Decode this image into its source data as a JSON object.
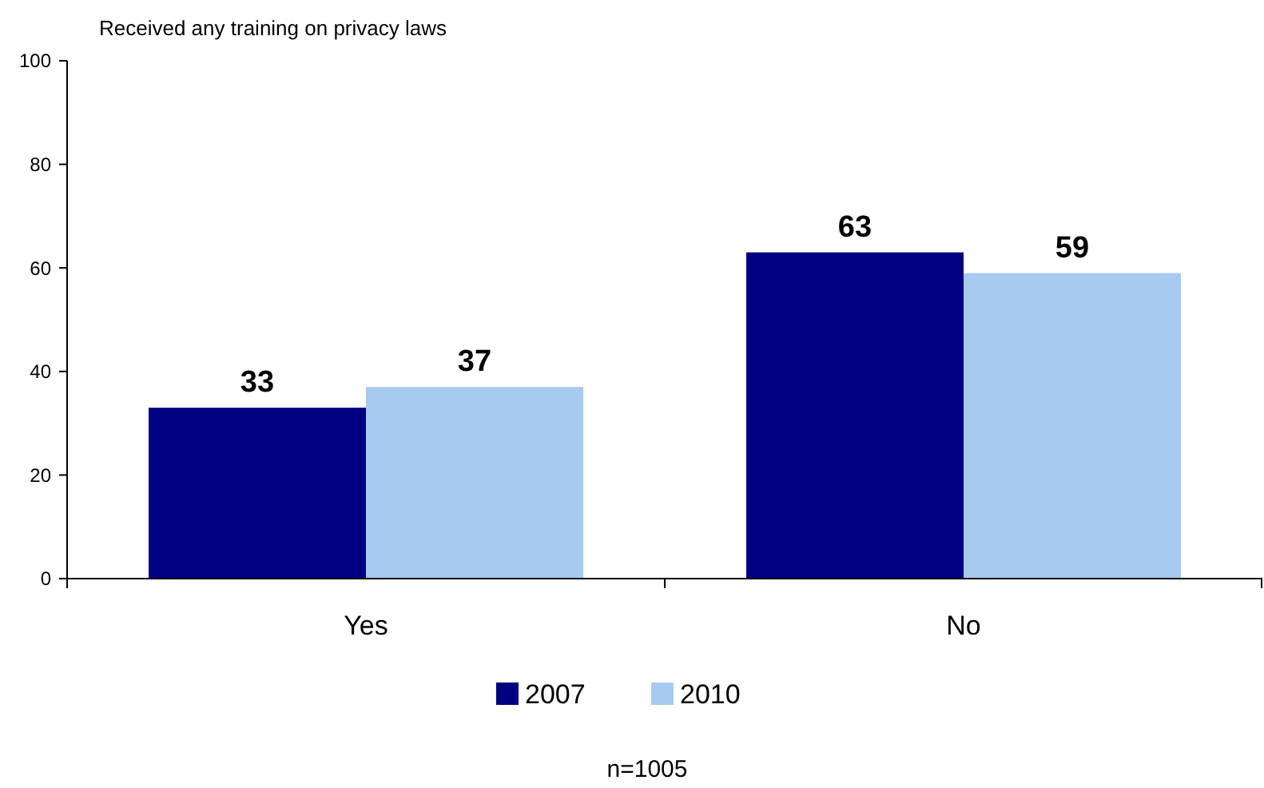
{
  "chart_data": {
    "type": "bar",
    "title": "Received any training on privacy laws",
    "categories": [
      "Yes",
      "No"
    ],
    "series": [
      {
        "name": "2007",
        "color": "#000080",
        "values": [
          33,
          63
        ]
      },
      {
        "name": "2010",
        "color": "#a6caf0",
        "values": [
          37,
          59
        ]
      }
    ],
    "ylim": [
      0,
      100
    ],
    "yticks": [
      0,
      20,
      40,
      60,
      80,
      100
    ],
    "grid": false,
    "legend": "bottom",
    "data_labels": true,
    "annotations": [
      "n=1005"
    ]
  }
}
